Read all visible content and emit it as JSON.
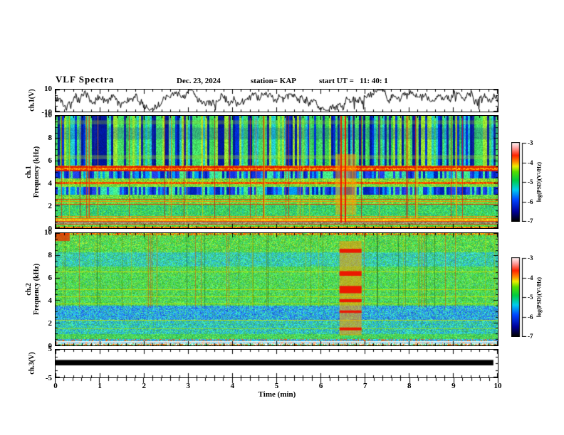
{
  "header": {
    "title": "VLF Spectra",
    "date": "Dec. 23, 2024",
    "station": "station= KAP",
    "start_ut": "start UT =   11: 40: 1"
  },
  "time_axis": {
    "label": "Time (min)",
    "min": 0,
    "max": 10,
    "major_ticks": [
      0,
      1,
      2,
      3,
      4,
      5,
      6,
      7,
      8,
      9,
      10
    ],
    "minor_step": 0.2
  },
  "colorbar": {
    "label": "log(PSD)(V²/Hz)",
    "min": -7,
    "max": -3,
    "ticks": [
      -3,
      -4,
      -5,
      -6,
      -7
    ],
    "stops": [
      {
        "t": 0.0,
        "c": "#000000"
      },
      {
        "t": 0.12,
        "c": "#000099"
      },
      {
        "t": 0.27,
        "c": "#0044ff"
      },
      {
        "t": 0.4,
        "c": "#00ccee"
      },
      {
        "t": 0.52,
        "c": "#00cc44"
      },
      {
        "t": 0.63,
        "c": "#55dd00"
      },
      {
        "t": 0.7,
        "c": "#eeee00"
      },
      {
        "t": 0.76,
        "c": "#ff8800"
      },
      {
        "t": 0.84,
        "c": "#ff2200"
      },
      {
        "t": 0.94,
        "c": "#ffaaaa"
      },
      {
        "t": 1.0,
        "c": "#fff2f2"
      }
    ]
  },
  "chart_data": {
    "type": "heatmap",
    "title": "VLF Spectra",
    "subtitle": "Dec. 23, 2024  station= KAP  start UT = 11:40:1",
    "xlabel": "Time (min)",
    "x_range": [
      0,
      10
    ],
    "panels": [
      {
        "id": "ch1_voltage",
        "type": "line",
        "ylabel": "ch.1(V)",
        "ylim": [
          -10,
          10
        ],
        "yticks": [
          10,
          -10
        ],
        "y_minor_step": 5,
        "description": "noisy broadband waveform, mean near +3 V, excursions -7..+8 V",
        "seed": 13,
        "mean": 3.2,
        "jitter": 2.4,
        "spike_prob": 0.012,
        "spike_depth": 7
      },
      {
        "id": "ch1_spectrogram",
        "type": "heatmap",
        "ylabel_line1": "ch.1",
        "ylabel_line2": "Frequency (kHz)",
        "ylim": [
          0,
          10
        ],
        "yticks": [
          0,
          2,
          4,
          6,
          8,
          10
        ],
        "y_minor_step": 0.5,
        "seed": 11,
        "bands": [
          {
            "f0": 0.0,
            "f1": 0.12,
            "mode": "noise",
            "colors": [
              "#ee3300",
              "#ff7700",
              "#ffaa00"
            ]
          },
          {
            "f0": 0.12,
            "f1": 0.4,
            "mode": "noise",
            "colors": [
              "#33cc33",
              "#55dd44",
              "#88dd66"
            ]
          },
          {
            "f0": 0.4,
            "f1": 0.62,
            "mode": "noise",
            "colors": [
              "#999977",
              "#aaaa88",
              "#777755"
            ]
          },
          {
            "f0": 0.62,
            "f1": 0.8,
            "mode": "noise",
            "colors": [
              "#ffaa00",
              "#ffcc00",
              "#ddcc22"
            ]
          },
          {
            "f0": 0.8,
            "f1": 1.08,
            "mode": "noise",
            "colors": [
              "#44cc44",
              "#66dd55",
              "#aadd44"
            ]
          },
          {
            "f0": 1.08,
            "f1": 2.08,
            "mode": "noise",
            "colors": [
              "#33cc55",
              "#44dd77",
              "#22bb99",
              "#55dd44"
            ]
          },
          {
            "f0": 2.08,
            "f1": 2.98,
            "mode": "noise",
            "colors": [
              "#44cc44",
              "#99dd33",
              "#66dd55"
            ]
          },
          {
            "f0": 2.98,
            "f1": 3.68,
            "mode": "stripe",
            "colors": [
              "#2244ee",
              "#0022bb",
              "#0099ff",
              "#33ddaa",
              "#1133dd",
              "#44ee88"
            ]
          },
          {
            "f0": 3.68,
            "f1": 3.94,
            "mode": "noise",
            "colors": [
              "#55dd44",
              "#99dd33"
            ]
          },
          {
            "f0": 3.94,
            "f1": 4.12,
            "mode": "noise",
            "colors": [
              "#ee2200",
              "#ff5500",
              "#ff8800"
            ]
          },
          {
            "f0": 4.12,
            "f1": 4.4,
            "mode": "noise",
            "colors": [
              "#88dd33",
              "#bbdd22",
              "#55cc44"
            ]
          },
          {
            "f0": 4.4,
            "f1": 5.06,
            "mode": "stripe",
            "colors": [
              "#2244ee",
              "#0022bb",
              "#0099ff",
              "#33ddaa",
              "#1133dd",
              "#44ee88"
            ]
          },
          {
            "f0": 5.06,
            "f1": 5.54,
            "mode": "noise",
            "colors": [
              "#ee2200",
              "#ff5500",
              "#ff9900",
              "#ffcc00"
            ]
          },
          {
            "f0": 5.54,
            "f1": 10.0,
            "mode": "stripe",
            "colors": [
              "#001899",
              "#0033dd",
              "#33cc55",
              "#44dd66",
              "#99e833",
              "#22cccc",
              "#112299",
              "#44dd66"
            ]
          }
        ],
        "hbands": [
          {
            "f0": 6.15,
            "f1": 6.5,
            "c": "#aadd22",
            "a": 0.35
          },
          {
            "f0": 9.25,
            "f1": 9.6,
            "c": "#aadd22",
            "a": 0.28
          },
          {
            "f0": 7.9,
            "f1": 8.95,
            "c": "#0022bb",
            "a": 0.22
          }
        ],
        "hlines": [
          {
            "f": 0.41,
            "c": "#ee3300",
            "w": 1
          },
          {
            "f": 0.63,
            "c": "#ee3300",
            "w": 1
          },
          {
            "f": 0.86,
            "c": "#ff6600",
            "w": 1
          },
          {
            "f": 1.1,
            "c": "#ff8800",
            "w": 1
          },
          {
            "f": 2.14,
            "c": "#ee3300",
            "w": 1
          },
          {
            "f": 2.4,
            "c": "#ff8800",
            "w": 1
          },
          {
            "f": 2.62,
            "c": "#ee3300",
            "w": 1
          },
          {
            "f": 5.1,
            "c": "#dd1100",
            "w": 2
          },
          {
            "f": 5.46,
            "c": "#dd1100",
            "w": 2
          }
        ],
        "vlines": {
          "density": 0.06,
          "colors": [
            "#ee2200",
            "#ff7700",
            "#cc1100",
            "#ddcc00"
          ],
          "f0": 0.9,
          "f1": 10,
          "alpha": 0.7
        },
        "special": {
          "t0": 6.33,
          "t1": 6.8,
          "f0": 1.2,
          "f1": 6.6,
          "c": "#ffaa00",
          "a": 0.5,
          "segments": [],
          "red_cols": [
            6.44,
            6.54
          ]
        },
        "patches": []
      },
      {
        "id": "ch2_spectrogram",
        "type": "heatmap",
        "ylabel_line1": "ch.2",
        "ylabel_line2": "Frequency (kHz)",
        "ylim": [
          0,
          10
        ],
        "yticks": [
          0,
          2,
          4,
          6,
          8,
          10
        ],
        "y_minor_step": 0.5,
        "seed": 29,
        "bands": [
          {
            "f0": 0.0,
            "f1": 0.1,
            "mode": "noise",
            "colors": [
              "#ff6600",
              "#44dd88",
              "#ffffff"
            ]
          },
          {
            "f0": 0.1,
            "f1": 0.22,
            "mode": "noise",
            "colors": [
              "#ffffff",
              "#ffeeee",
              "#aaeeee"
            ]
          },
          {
            "f0": 0.22,
            "f1": 0.55,
            "mode": "noise",
            "colors": [
              "#22bbee",
              "#44ddcc",
              "#3399ff",
              "#ff5500"
            ]
          },
          {
            "f0": 0.55,
            "f1": 1.02,
            "mode": "noise",
            "colors": [
              "#44cc44",
              "#66dd55",
              "#33cc77"
            ]
          },
          {
            "f0": 1.02,
            "f1": 2.2,
            "mode": "noise",
            "colors": [
              "#33cccc",
              "#44ddaa",
              "#2299dd",
              "#44cc66"
            ]
          },
          {
            "f0": 2.2,
            "f1": 3.52,
            "mode": "noise",
            "colors": [
              "#3399ee",
              "#22bbdd",
              "#44ddaa",
              "#2266ee"
            ]
          },
          {
            "f0": 3.52,
            "f1": 7.0,
            "mode": "noise",
            "colors": [
              "#3bd23b",
              "#55dd55",
              "#44cc88",
              "#77dd44"
            ]
          },
          {
            "f0": 7.0,
            "f1": 8.3,
            "mode": "noise",
            "colors": [
              "#33ccaa",
              "#44ddaa",
              "#2fb4e0",
              "#44cc66"
            ]
          },
          {
            "f0": 8.3,
            "f1": 9.8,
            "mode": "noise",
            "colors": [
              "#3bd23b",
              "#99dd33",
              "#55dd55",
              "#44cc77"
            ]
          },
          {
            "f0": 9.8,
            "f1": 10.0,
            "mode": "noise",
            "colors": [
              "#ff4400",
              "#ff8800",
              "#44cc44",
              "#ccdd22"
            ]
          }
        ],
        "hbands": [],
        "hlines": [
          {
            "f": 0.3,
            "c": "#ffffff",
            "w": 2
          },
          {
            "f": 1.55,
            "c": "#88dd22",
            "w": 1
          },
          {
            "f": 2.3,
            "c": "#ccdd00",
            "w": 1
          },
          {
            "f": 3.72,
            "c": "#bbdd00",
            "w": 1
          },
          {
            "f": 4.38,
            "c": "#bbdd00",
            "w": 1
          },
          {
            "f": 5.02,
            "c": "#bbdd00",
            "w": 1
          },
          {
            "f": 6.6,
            "c": "#ccdd00",
            "w": 1
          }
        ],
        "vlines": {
          "density": 0.06,
          "colors": [
            "#bbbb00",
            "#667700",
            "#ee4400",
            "#225511"
          ],
          "f0": 3.4,
          "f1": 10,
          "alpha": 0.5
        },
        "special": {
          "t0": 6.42,
          "t1": 6.92,
          "f0": 0.9,
          "f1": 9.3,
          "c": "#ff9900",
          "a": 0.55,
          "segments": [
            [
              8.25,
              8.6
            ],
            [
              6.2,
              6.62
            ],
            [
              4.65,
              5.3
            ],
            [
              3.85,
              4.12
            ],
            [
              2.9,
              3.12
            ],
            [
              1.35,
              1.6
            ]
          ],
          "red_cols": []
        },
        "patches": [
          {
            "t0": 0.0,
            "t1": 0.32,
            "f0": 9.3,
            "f1": 10.0,
            "c": "#ee3300",
            "a": 0.8
          }
        ]
      },
      {
        "id": "ch3_voltage",
        "type": "band",
        "ylabel": "ch.3(V)",
        "ylim": [
          -5,
          5
        ],
        "yticks": [
          5,
          -5
        ],
        "y_minor_step": 2.5,
        "description": "saturated constant-amplitude signal drawn as solid black band",
        "band_v": [
          -0.8,
          1.2
        ],
        "t_span": [
          0,
          9.9
        ]
      }
    ]
  }
}
